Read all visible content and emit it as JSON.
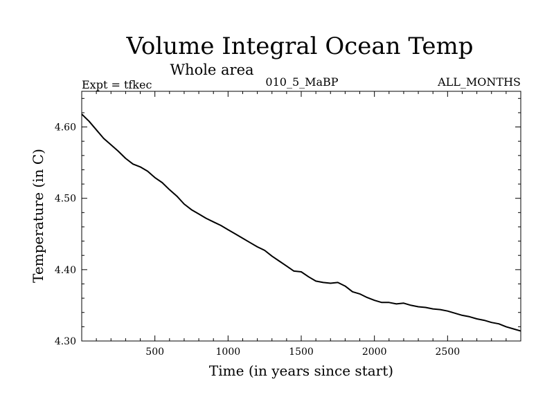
{
  "title": "Volume Integral Ocean Temp",
  "subtitle": "Whole area",
  "expt_label": "Expt = tfkec",
  "run_label": "010_5_MaBP",
  "months_label": "ALL_MONTHS",
  "chart_data": {
    "type": "line",
    "title": "Volume Integral Ocean Temp",
    "subtitle": "Whole area",
    "xlabel": "Time (in years since start)",
    "ylabel": "Temperature (in C)",
    "xlim": [
      0,
      3000
    ],
    "ylim": [
      4.3,
      4.65
    ],
    "x_ticks": [
      500,
      1000,
      1500,
      2000,
      2500
    ],
    "x_tick_labels": [
      "500",
      "1000",
      "1500",
      "2000",
      "2500"
    ],
    "y_ticks": [
      4.3,
      4.4,
      4.5,
      4.6
    ],
    "y_tick_labels": [
      "4.30",
      "4.40",
      "4.50",
      "4.60"
    ],
    "grid": false,
    "series": [
      {
        "color": "#000000",
        "x": [
          0,
          50,
          100,
          150,
          200,
          250,
          300,
          350,
          400,
          450,
          500,
          550,
          600,
          650,
          700,
          750,
          800,
          850,
          900,
          950,
          1000,
          1050,
          1100,
          1150,
          1200,
          1250,
          1300,
          1350,
          1400,
          1450,
          1500,
          1550,
          1600,
          1650,
          1700,
          1750,
          1800,
          1850,
          1900,
          1950,
          2000,
          2050,
          2100,
          2150,
          2200,
          2250,
          2300,
          2350,
          2400,
          2450,
          2500,
          2550,
          2600,
          2650,
          2700,
          2750,
          2800,
          2850,
          2900,
          2950,
          3000
        ],
        "y": [
          4.618,
          4.608,
          4.596,
          4.584,
          4.575,
          4.566,
          4.556,
          4.548,
          4.544,
          4.538,
          4.529,
          4.522,
          4.512,
          4.503,
          4.492,
          4.484,
          4.478,
          4.472,
          4.467,
          4.462,
          4.456,
          4.45,
          4.444,
          4.438,
          4.432,
          4.427,
          4.419,
          4.412,
          4.405,
          4.398,
          4.397,
          4.39,
          4.384,
          4.382,
          4.381,
          4.382,
          4.377,
          4.369,
          4.366,
          4.361,
          4.357,
          4.354,
          4.354,
          4.352,
          4.353,
          4.35,
          4.348,
          4.347,
          4.345,
          4.344,
          4.342,
          4.339,
          4.336,
          4.334,
          4.331,
          4.329,
          4.326,
          4.324,
          4.32,
          4.317,
          4.314
        ]
      }
    ]
  }
}
